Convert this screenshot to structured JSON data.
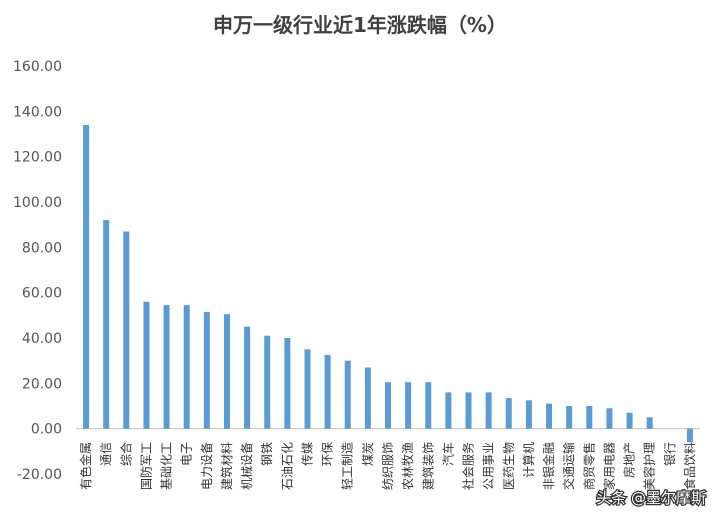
{
  "chart_data": {
    "type": "bar",
    "title": "申万一级行业近1年涨跌幅（%）",
    "xlabel": "",
    "ylabel": "",
    "ylim": [
      -20,
      160
    ],
    "yticks": [
      -20,
      0,
      20,
      40,
      60,
      80,
      100,
      120,
      140,
      160
    ],
    "ytick_labels": [
      "-20.00",
      "0.00",
      "20.00",
      "40.00",
      "60.00",
      "80.00",
      "100.00",
      "120.00",
      "140.00",
      "160.00"
    ],
    "grid": false,
    "legend": "none",
    "bar_color": "#5b9bd5",
    "categories": [
      "有色金属",
      "通信",
      "综合",
      "国防军工",
      "基础化工",
      "电子",
      "电力设备",
      "建筑材料",
      "机械设备",
      "钢铁",
      "石油石化",
      "传媒",
      "环保",
      "轻工制造",
      "煤炭",
      "纺织服饰",
      "农林牧渔",
      "建筑装饰",
      "汽车",
      "社会服务",
      "公用事业",
      "医药生物",
      "计算机",
      "非银金融",
      "交通运输",
      "商贸零售",
      "家用电器",
      "房地产",
      "美容护理",
      "银行",
      "食品饮料"
    ],
    "values": [
      134,
      92,
      87,
      56,
      54.5,
      54.5,
      51.5,
      50.5,
      45,
      41,
      40,
      35,
      32.5,
      30,
      27,
      20.5,
      20.5,
      20.5,
      16,
      16,
      16,
      13.5,
      12.5,
      11,
      10,
      10,
      9,
      7,
      5,
      0,
      -6
    ]
  },
  "watermark": {
    "text": "头条 @墨尔摩斯"
  }
}
